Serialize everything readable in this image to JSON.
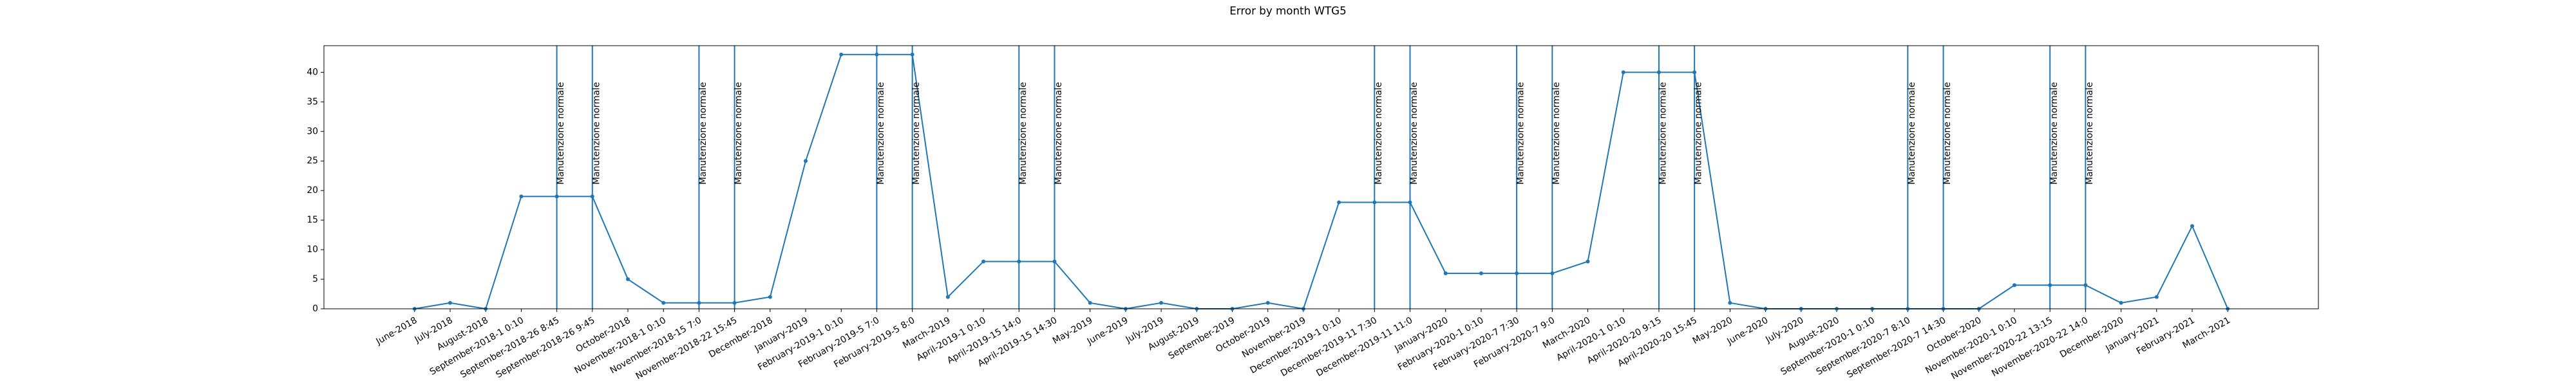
{
  "chart_data": {
    "type": "line",
    "title": "Error by month WTG5",
    "categories": [
      "June-2018",
      "July-2018",
      "August-2018",
      "September-2018-1 0:10",
      "September-2018-26 8:45",
      "September-2018-26 9:45",
      "October-2018",
      "November-2018-1 0:10",
      "November-2018-15 7:0",
      "November-2018-22 15:45",
      "December-2018",
      "January-2019",
      "February-2019-1 0:10",
      "February-2019-5 7:0",
      "February-2019-5 8:0",
      "March-2019",
      "April-2019-1 0:10",
      "April-2019-15 14:0",
      "April-2019-15 14:30",
      "May-2019",
      "June-2019",
      "July-2019",
      "August-2019",
      "September-2019",
      "October-2019",
      "November-2019",
      "December-2019-1 0:10",
      "December-2019-11 7:30",
      "December-2019-11 11:0",
      "January-2020",
      "February-2020-1 0:10",
      "February-2020-7 7:30",
      "February-2020-7 9:0",
      "March-2020",
      "April-2020-1 0:10",
      "April-2020-20 9:15",
      "April-2020-20 15:45",
      "May-2020",
      "June-2020",
      "July-2020",
      "August-2020",
      "September-2020-1 0:10",
      "September-2020-7 8:10",
      "September-2020-7 14:30",
      "October-2020",
      "November-2020-1 0:10",
      "November-2020-22 13:15",
      "November-2020-22 14:0",
      "December-2020",
      "January-2021",
      "February-2021",
      "March-2021"
    ],
    "values": [
      0,
      1,
      0,
      19,
      19,
      19,
      5,
      1,
      1,
      1,
      2,
      25,
      43,
      43,
      43,
      2,
      8,
      8,
      8,
      1,
      0,
      1,
      0,
      0,
      1,
      0,
      18,
      18,
      18,
      6,
      6,
      6,
      6,
      8,
      40,
      40,
      40,
      1,
      0,
      0,
      0,
      0,
      0,
      0,
      0,
      4,
      4,
      4,
      1,
      2,
      14,
      0
    ],
    "color": "#1f77b4",
    "ylim": [
      0,
      44.5
    ],
    "yticks": [
      0,
      5,
      10,
      15,
      20,
      25,
      30,
      35,
      40
    ],
    "vlines": [
      "September-2018-26 8:45",
      "September-2018-26 9:45",
      "November-2018-15 7:0",
      "November-2018-22 15:45",
      "February-2019-5 7:0",
      "February-2019-5 8:0",
      "April-2019-15 14:0",
      "April-2019-15 14:30",
      "December-2019-11 7:30",
      "December-2019-11 11:0",
      "February-2020-7 7:30",
      "February-2020-7 9:0",
      "April-2020-20 9:15",
      "April-2020-20 15:45",
      "September-2020-7 8:10",
      "September-2020-7 14:30",
      "November-2020-22 13:15",
      "November-2020-22 14:0"
    ],
    "annotations": [
      {
        "x": "September-2018-26 8:45",
        "y": 21,
        "text": "Manutenzione normale"
      },
      {
        "x": "September-2018-26 9:45",
        "y": 21,
        "text": "Manutenzione normale"
      },
      {
        "x": "November-2018-15 7:0",
        "y": 21,
        "text": "Manutenzione normale"
      },
      {
        "x": "November-2018-22 15:45",
        "y": 21,
        "text": "Manutenzione normale"
      },
      {
        "x": "February-2019-5 7:0",
        "y": 21,
        "text": "Manutenzione normale"
      },
      {
        "x": "February-2019-5 8:0",
        "y": 21,
        "text": "Manutenzione normale"
      },
      {
        "x": "April-2019-15 14:0",
        "y": 21,
        "text": "Manutenzione normale"
      },
      {
        "x": "April-2019-15 14:30",
        "y": 21,
        "text": "Manutenzione normale"
      },
      {
        "x": "December-2019-11 7:30",
        "y": 21,
        "text": "Manutenzione normale"
      },
      {
        "x": "December-2019-11 11:0",
        "y": 21,
        "text": "Manutenzione normale"
      },
      {
        "x": "February-2020-7 7:30",
        "y": 21,
        "text": "Manutenzione normale"
      },
      {
        "x": "February-2020-7 9:0",
        "y": 21,
        "text": "Manutenzione normale"
      },
      {
        "x": "April-2020-20 9:15",
        "y": 21,
        "text": "Manutenzione normale"
      },
      {
        "x": "April-2020-20 15:45",
        "y": 21,
        "text": "Manutenzione normale"
      },
      {
        "x": "September-2020-7 8:10",
        "y": 21,
        "text": "Manutenzione normale"
      },
      {
        "x": "September-2020-7 14:30",
        "y": 21,
        "text": "Manutenzione normale"
      },
      {
        "x": "November-2020-22 13:15",
        "y": 21,
        "text": "Manutenzione normale"
      },
      {
        "x": "November-2020-22 14:0",
        "y": 21,
        "text": "Manutenzione normale"
      }
    ]
  }
}
